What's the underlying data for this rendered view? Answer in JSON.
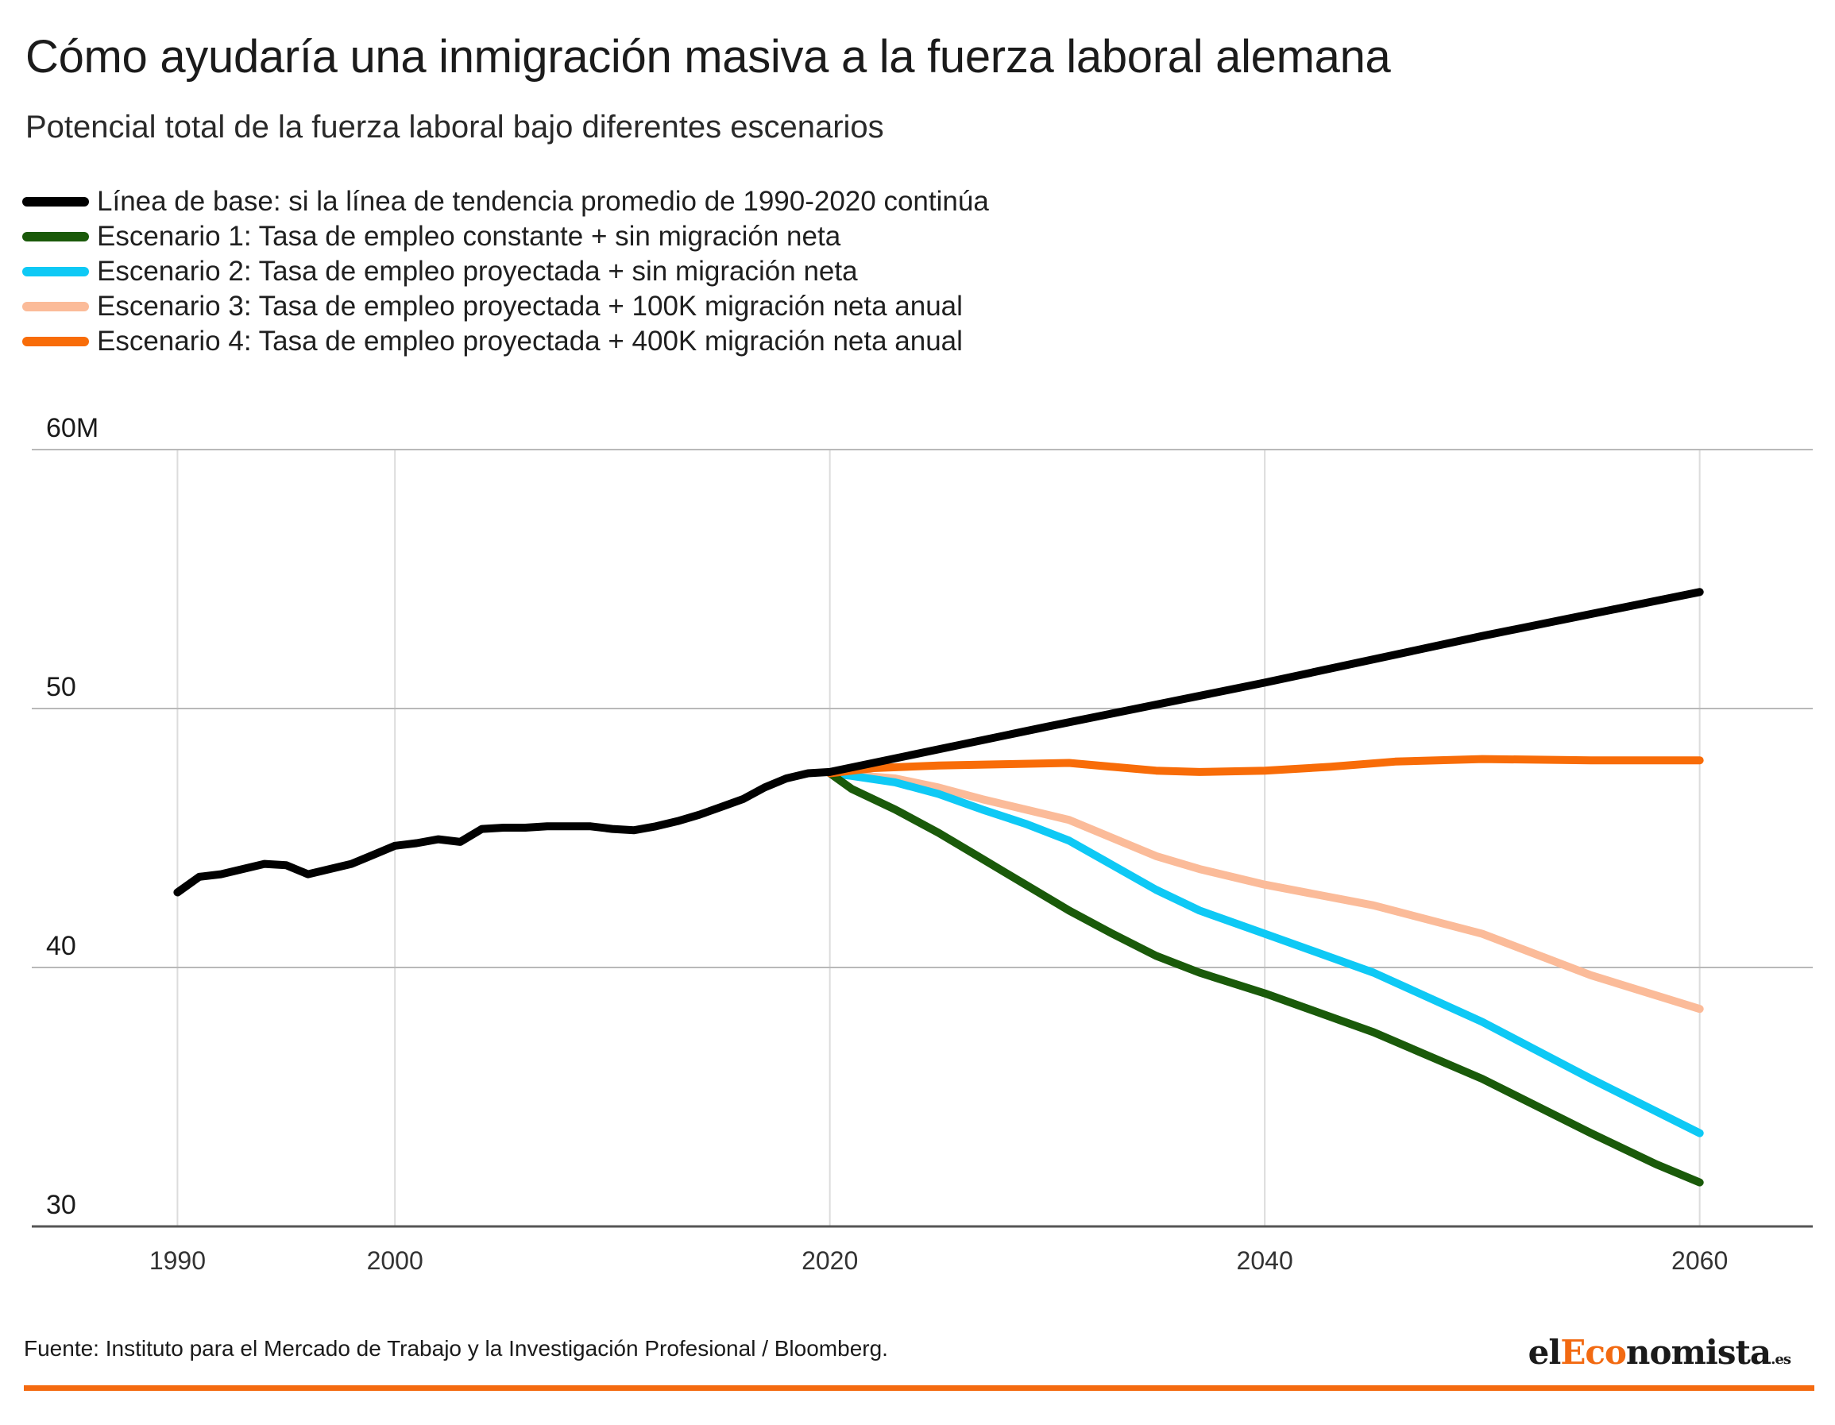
{
  "header": {
    "title": "Cómo ayudaría una inmigración masiva a la fuerza laboral alemana",
    "subtitle": "Potencial total de la fuerza laboral bajo diferentes escenarios"
  },
  "footer": {
    "source": "Fuente: Instituto para el Mercado de Trabajo y la Investigación Profesional / Bloomberg.",
    "logo_prefix": "el",
    "logo_accent": "Eco",
    "logo_main": "nomista",
    "logo_suffix": ".es",
    "rule_color": "#f46a10"
  },
  "chart_data": {
    "type": "line",
    "title": "Cómo ayudaría una inmigración masiva a la fuerza laboral alemana",
    "subtitle": "Potencial total de la fuerza laboral bajo diferentes escenarios",
    "xlabel": "",
    "ylabel": "",
    "xlim": [
      1983.3,
      2065.2
    ],
    "ylim": [
      30,
      60
    ],
    "x_ticks": [
      1990,
      2000,
      2020,
      2040,
      2060
    ],
    "y_ticks": [
      {
        "value": 30,
        "label": "30"
      },
      {
        "value": 40,
        "label": "40"
      },
      {
        "value": 50,
        "label": "50"
      },
      {
        "value": 60,
        "label": "60M"
      }
    ],
    "grid": true,
    "legend_position": "top-left",
    "series": [
      {
        "name": "Línea de base: si la línea de tendencia promedio de 1990-2020 continúa",
        "color": "#000000",
        "points": [
          [
            1990,
            42.9
          ],
          [
            1991,
            43.5
          ],
          [
            1992,
            43.6
          ],
          [
            1993,
            43.8
          ],
          [
            1994,
            44.0
          ],
          [
            1995,
            43.95
          ],
          [
            1996,
            43.6
          ],
          [
            1997,
            43.8
          ],
          [
            1998,
            44.0
          ],
          [
            1999,
            44.35
          ],
          [
            2000,
            44.7
          ],
          [
            2001,
            44.8
          ],
          [
            2002,
            44.95
          ],
          [
            2003,
            44.85
          ],
          [
            2004,
            45.35
          ],
          [
            2005,
            45.4
          ],
          [
            2006,
            45.4
          ],
          [
            2007,
            45.45
          ],
          [
            2008,
            45.45
          ],
          [
            2009,
            45.45
          ],
          [
            2010,
            45.35
          ],
          [
            2011,
            45.3
          ],
          [
            2012,
            45.45
          ],
          [
            2013,
            45.65
          ],
          [
            2014,
            45.9
          ],
          [
            2015,
            46.2
          ],
          [
            2016,
            46.5
          ],
          [
            2017,
            46.95
          ],
          [
            2018,
            47.3
          ],
          [
            2019,
            47.5
          ],
          [
            2020,
            47.55
          ],
          [
            2030,
            49.3
          ],
          [
            2040,
            51.0
          ],
          [
            2050,
            52.8
          ],
          [
            2060,
            54.5
          ]
        ]
      },
      {
        "name": "Escenario 1: Tasa de empleo constante + sin migración neta",
        "color": "#1a5a0a",
        "points": [
          [
            2020,
            47.5
          ],
          [
            2021,
            46.9
          ],
          [
            2023,
            46.1
          ],
          [
            2025,
            45.2
          ],
          [
            2027,
            44.2
          ],
          [
            2029,
            43.2
          ],
          [
            2031,
            42.2
          ],
          [
            2033,
            41.3
          ],
          [
            2035,
            40.45
          ],
          [
            2037,
            39.8
          ],
          [
            2040,
            39.0
          ],
          [
            2045,
            37.5
          ],
          [
            2050,
            35.7
          ],
          [
            2055,
            33.6
          ],
          [
            2058,
            32.4
          ],
          [
            2060,
            31.7
          ]
        ]
      },
      {
        "name": "Escenario 2: Tasa de empleo proyectada + sin migración neta",
        "color": "#0ec9f5",
        "points": [
          [
            2020,
            47.5
          ],
          [
            2021,
            47.4
          ],
          [
            2023,
            47.15
          ],
          [
            2025,
            46.7
          ],
          [
            2027,
            46.1
          ],
          [
            2029,
            45.55
          ],
          [
            2031,
            44.9
          ],
          [
            2033,
            43.95
          ],
          [
            2035,
            43.0
          ],
          [
            2037,
            42.2
          ],
          [
            2040,
            41.3
          ],
          [
            2045,
            39.8
          ],
          [
            2050,
            37.9
          ],
          [
            2055,
            35.7
          ],
          [
            2060,
            33.6
          ]
        ]
      },
      {
        "name": "Escenario 3: Tasa de empleo proyectada + 100K migración neta anual",
        "color": "#fbbb99",
        "points": [
          [
            2020,
            47.5
          ],
          [
            2023,
            47.3
          ],
          [
            2025,
            46.95
          ],
          [
            2027,
            46.5
          ],
          [
            2029,
            46.1
          ],
          [
            2031,
            45.7
          ],
          [
            2033,
            45.0
          ],
          [
            2035,
            44.3
          ],
          [
            2037,
            43.8
          ],
          [
            2040,
            43.2
          ],
          [
            2045,
            42.4
          ],
          [
            2050,
            41.3
          ],
          [
            2055,
            39.7
          ],
          [
            2060,
            38.4
          ]
        ]
      },
      {
        "name": "Escenario 4: Tasa de empleo proyectada + 400K migración neta anual",
        "color": "#f86c08",
        "points": [
          [
            2020,
            47.5
          ],
          [
            2022,
            47.7
          ],
          [
            2025,
            47.8
          ],
          [
            2028,
            47.85
          ],
          [
            2031,
            47.9
          ],
          [
            2033,
            47.75
          ],
          [
            2035,
            47.6
          ],
          [
            2037,
            47.55
          ],
          [
            2040,
            47.6
          ],
          [
            2043,
            47.75
          ],
          [
            2046,
            47.95
          ],
          [
            2050,
            48.05
          ],
          [
            2055,
            48.0
          ],
          [
            2060,
            48.0
          ]
        ]
      }
    ]
  }
}
